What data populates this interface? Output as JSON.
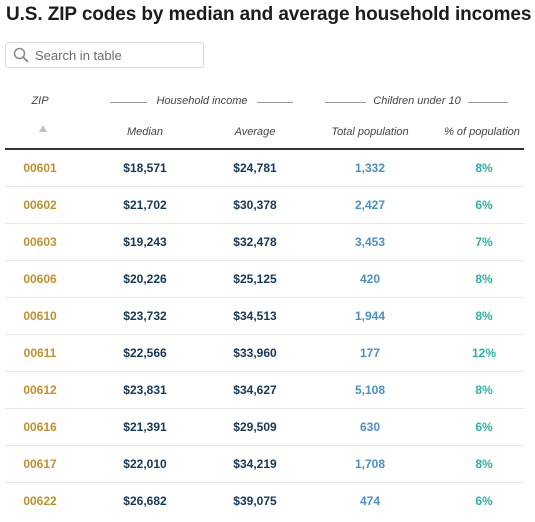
{
  "title": "U.S. ZIP codes by median and average household incomes",
  "search": {
    "placeholder": "Search in table",
    "value": ""
  },
  "columns": {
    "zip": "ZIP",
    "group_income": "Household income",
    "group_children": "Children under 10",
    "median": "Median",
    "average": "Average",
    "total_population": "Total population",
    "percent_population": "% of population"
  },
  "icons": {
    "search": "search-icon",
    "sort": "sort-ascending-icon"
  },
  "colors": {
    "zip": "#c1902a",
    "income": "#14365c",
    "population": "#4a90c8",
    "percent": "#2ab3a6"
  },
  "rows": [
    {
      "zip": "00601",
      "median": "$18,571",
      "average": "$24,781",
      "total": "1,332",
      "pct": "8%"
    },
    {
      "zip": "00602",
      "median": "$21,702",
      "average": "$30,378",
      "total": "2,427",
      "pct": "6%"
    },
    {
      "zip": "00603",
      "median": "$19,243",
      "average": "$32,478",
      "total": "3,453",
      "pct": "7%"
    },
    {
      "zip": "00606",
      "median": "$20,226",
      "average": "$25,125",
      "total": "420",
      "pct": "8%"
    },
    {
      "zip": "00610",
      "median": "$23,732",
      "average": "$34,513",
      "total": "1,944",
      "pct": "8%"
    },
    {
      "zip": "00611",
      "median": "$22,566",
      "average": "$33,960",
      "total": "177",
      "pct": "12%"
    },
    {
      "zip": "00612",
      "median": "$23,831",
      "average": "$34,627",
      "total": "5,108",
      "pct": "8%"
    },
    {
      "zip": "00616",
      "median": "$21,391",
      "average": "$29,509",
      "total": "630",
      "pct": "6%"
    },
    {
      "zip": "00617",
      "median": "$22,010",
      "average": "$34,219",
      "total": "1,708",
      "pct": "8%"
    },
    {
      "zip": "00622",
      "median": "$26,682",
      "average": "$39,075",
      "total": "474",
      "pct": "6%"
    }
  ]
}
